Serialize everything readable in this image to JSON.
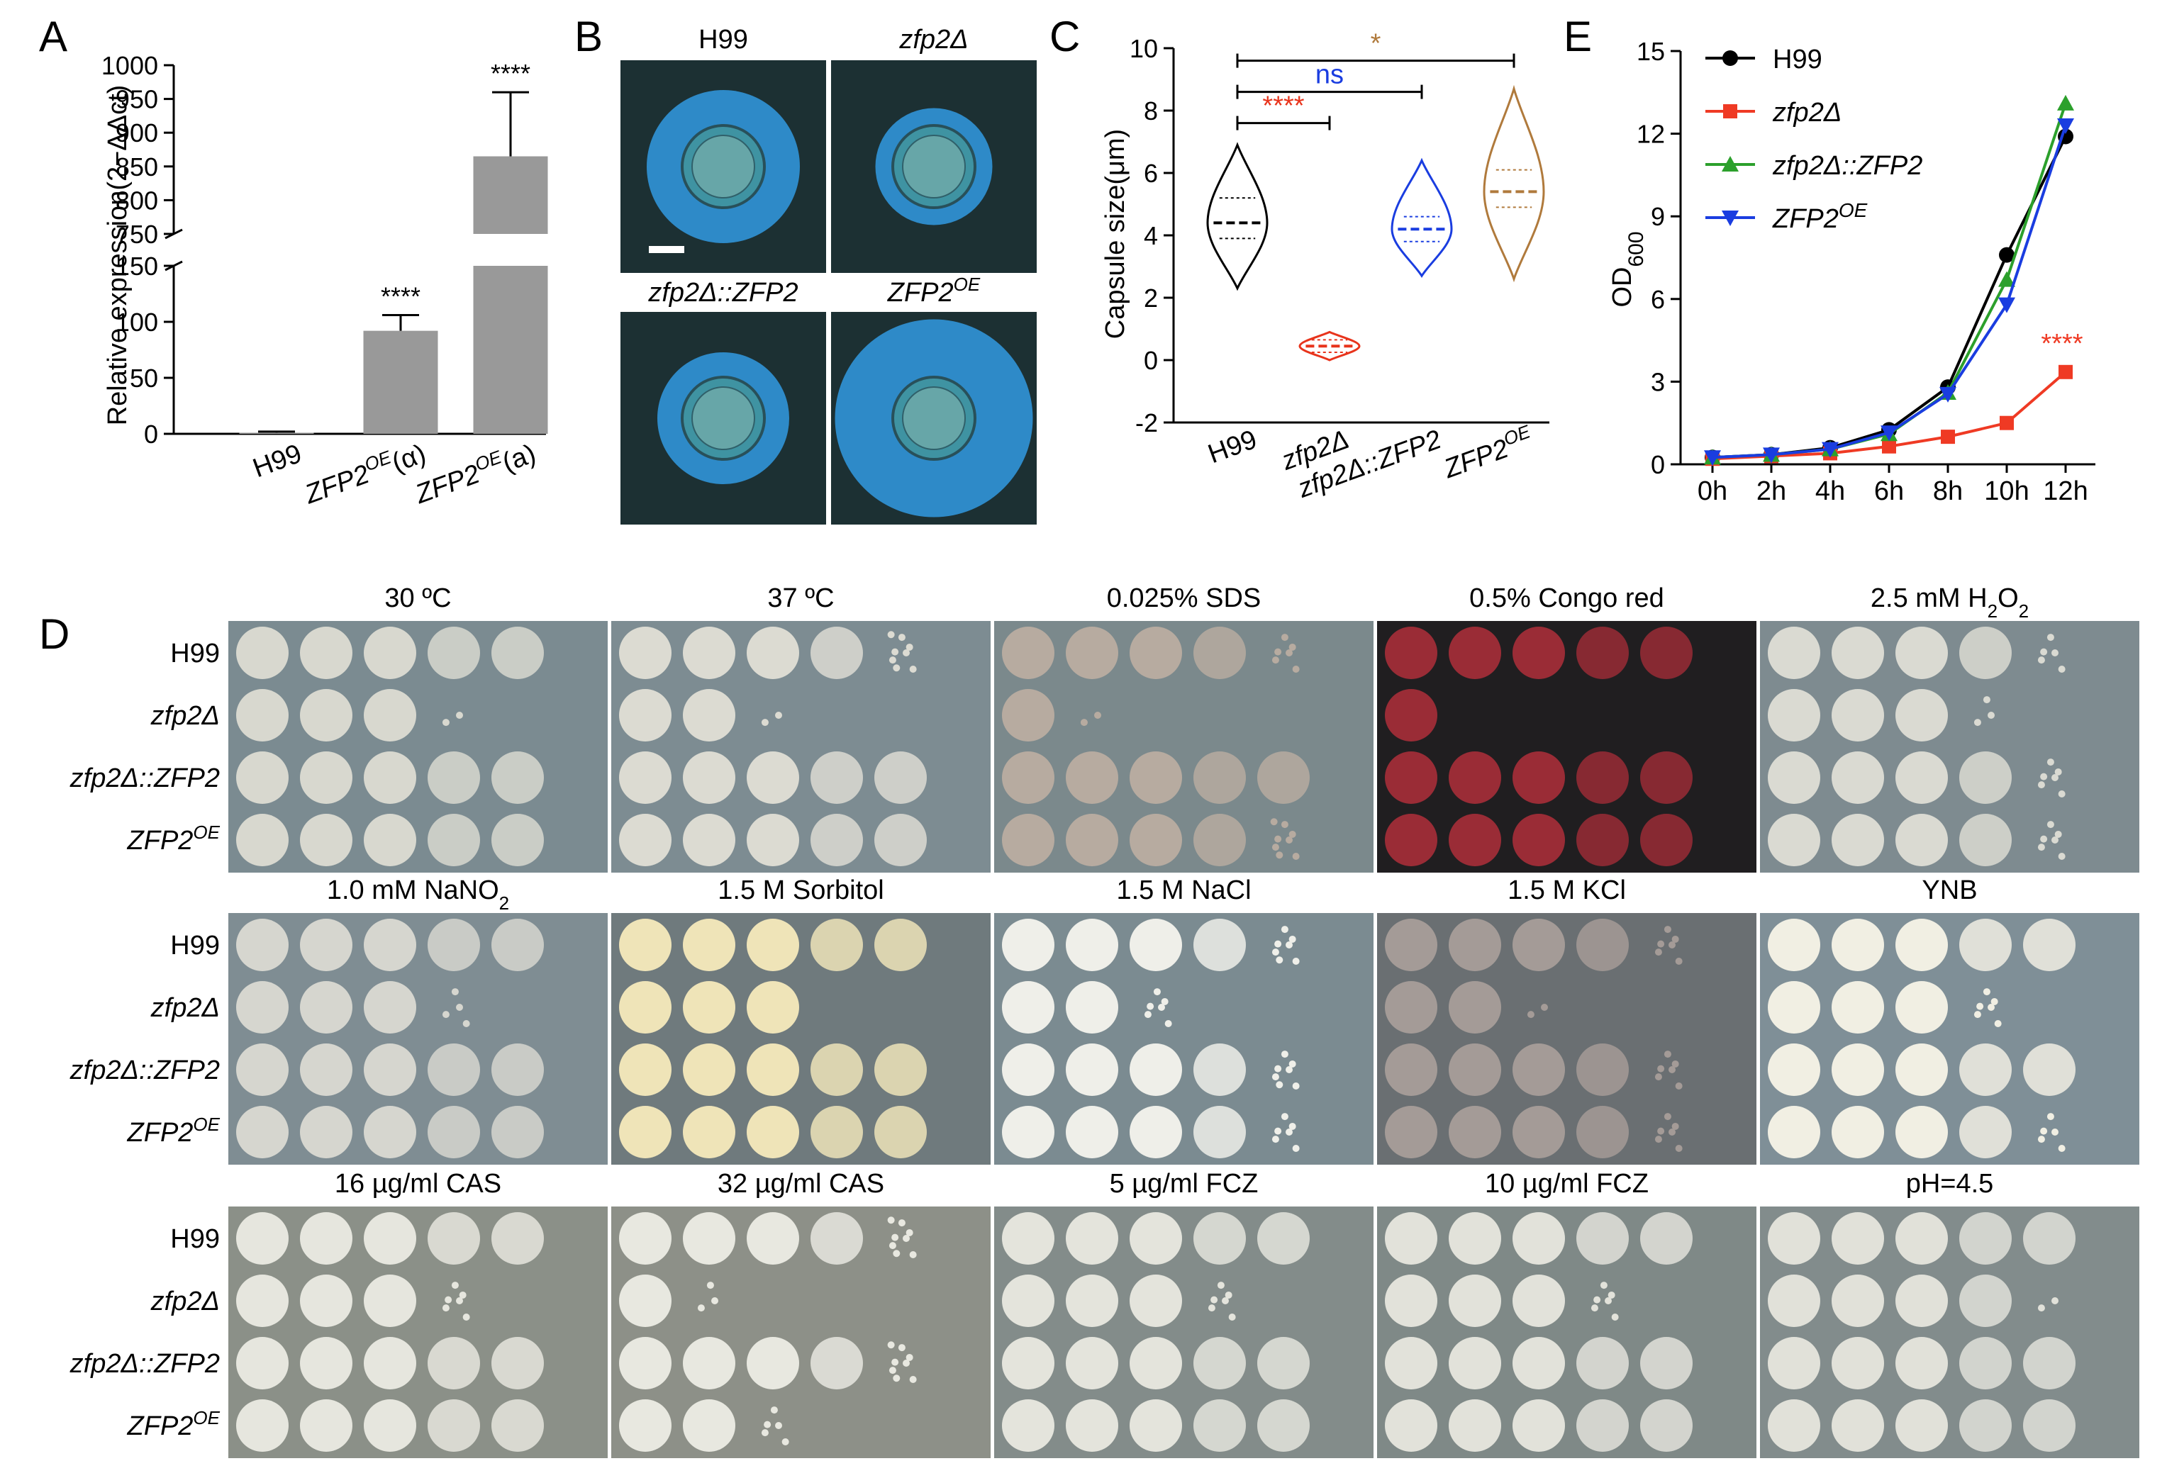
{
  "panel_letters": {
    "a": "A",
    "b": "B",
    "c": "C",
    "d": "D",
    "e": "E"
  },
  "chart_data": [
    {
      "panel": "A",
      "type": "bar",
      "ylabel": "Relative expression(2−ΔΔct)",
      "axis_break": true,
      "lower_range": [
        0,
        150
      ],
      "upper_range": [
        750,
        1000
      ],
      "lower_ticks": [
        "0",
        "50",
        "100",
        "150"
      ],
      "upper_ticks": [
        "750",
        "800",
        "850",
        "900",
        "950",
        "1000"
      ],
      "categories": [
        {
          "base": "H99",
          "sup": "",
          "suffix": ""
        },
        {
          "base": "ZFP2",
          "sup": "OE",
          "suffix": "(α)"
        },
        {
          "base": "ZFP2",
          "sup": "OE",
          "suffix": "(a)"
        }
      ],
      "values": [
        1,
        92,
        865
      ],
      "errors": [
        1,
        14,
        95
      ],
      "significance": [
        "",
        "****",
        "****"
      ],
      "bar_color": "#999999"
    },
    {
      "panel": "C",
      "type": "violin",
      "ylabel": "Capsule size(μm)",
      "ylim": [
        -2,
        10
      ],
      "ticks": [
        "-2",
        "0",
        "2",
        "4",
        "6",
        "8",
        "10"
      ],
      "categories": [
        {
          "base": "H99",
          "sup": ""
        },
        {
          "base": "zfp2Δ",
          "sup": ""
        },
        {
          "base": "zfp2Δ::ZFP2",
          "sup": ""
        },
        {
          "base": "ZFP2",
          "sup": "OE"
        }
      ],
      "series": [
        {
          "median": 4.4,
          "q1": 3.9,
          "q3": 5.2,
          "min": 2.3,
          "max": 6.9,
          "color": "#000000"
        },
        {
          "median": 0.45,
          "q1": 0.25,
          "q3": 0.65,
          "min": 0.0,
          "max": 0.9,
          "color": "#e8341c"
        },
        {
          "median": 4.2,
          "q1": 3.8,
          "q3": 4.6,
          "min": 2.7,
          "max": 6.4,
          "color": "#1a3de0"
        },
        {
          "median": 5.4,
          "q1": 4.9,
          "q3": 6.1,
          "min": 2.6,
          "max": 8.7,
          "color": "#b07a3c"
        }
      ],
      "comparisons": [
        {
          "from": 0,
          "to": 1,
          "level": 7.6,
          "label": "****",
          "color": "#e8341c"
        },
        {
          "from": 0,
          "to": 2,
          "level": 8.6,
          "label": "ns",
          "color": "#1a3de0"
        },
        {
          "from": 0,
          "to": 3,
          "level": 9.6,
          "label": "*",
          "color": "#b07a3c"
        }
      ]
    },
    {
      "panel": "E",
      "type": "line",
      "ylabel_main": "OD",
      "ylabel_sub": "600",
      "ylim": [
        0,
        15
      ],
      "yticks": [
        "0",
        "3",
        "6",
        "9",
        "12",
        "15"
      ],
      "x": [
        "0h",
        "2h",
        "4h",
        "6h",
        "8h",
        "10h",
        "12h"
      ],
      "series": [
        {
          "name": "H99",
          "italic": false,
          "sup": "",
          "values": [
            0.25,
            0.35,
            0.6,
            1.25,
            2.8,
            7.6,
            11.9
          ],
          "color": "#000000",
          "marker": "circle"
        },
        {
          "name": "zfp2Δ",
          "italic": true,
          "sup": "",
          "values": [
            0.2,
            0.3,
            0.4,
            0.65,
            1.0,
            1.5,
            3.35
          ],
          "color": "#ef3a24",
          "marker": "square"
        },
        {
          "name": "zfp2Δ::ZFP2",
          "italic": true,
          "sup": "",
          "values": [
            0.25,
            0.35,
            0.55,
            1.1,
            2.6,
            6.7,
            13.1
          ],
          "color": "#2ca02c",
          "marker": "triangle-up"
        },
        {
          "name": "ZFP2",
          "italic": true,
          "sup": "OE",
          "values": [
            0.25,
            0.35,
            0.55,
            1.15,
            2.55,
            5.8,
            12.3
          ],
          "color": "#1a3de0",
          "marker": "triangle-down"
        }
      ],
      "annotation": {
        "label": "****",
        "color": "#ef3a24"
      }
    }
  ],
  "panel_b": {
    "labels": [
      {
        "base": "H99",
        "sup": "",
        "italic": false
      },
      {
        "base": "zfp2Δ",
        "sup": "",
        "italic": true
      },
      {
        "base": "zfp2Δ::ZFP2",
        "sup": "",
        "italic": true
      },
      {
        "base": "ZFP2",
        "sup": "OE",
        "italic": true
      }
    ],
    "capsule_diameters": [
      0.72,
      0.55,
      0.62,
      0.93
    ]
  },
  "panel_d": {
    "strains": [
      {
        "base": "H99",
        "sup": "",
        "italic": false
      },
      {
        "base": "zfp2Δ",
        "sup": "",
        "italic": true
      },
      {
        "base": "zfp2Δ::ZFP2",
        "sup": "",
        "italic": true
      },
      {
        "base": "ZFP2",
        "sup": "OE",
        "italic": true
      }
    ],
    "conditions": [
      {
        "label": "30 ºC",
        "sub": "",
        "bg": "#7b8b91",
        "spot": "#d8d8cf",
        "growth": [
          5,
          3.2,
          5,
          5
        ]
      },
      {
        "label": "37 ºC",
        "sub": "",
        "bg": "#7d8c92",
        "spot": "#dcdbd2",
        "growth": [
          4.8,
          2.1,
          5,
          5
        ]
      },
      {
        "label": "0.025% SDS",
        "sub": "",
        "bg": "#7b898c",
        "spot": "#b7aba0",
        "growth": [
          4.6,
          1.2,
          5,
          4.8
        ]
      },
      {
        "label": "0.5% Congo red",
        "sub": "",
        "bg": "#201e20",
        "spot": "#9a2c36",
        "growth": [
          5,
          1.0,
          5,
          5
        ]
      },
      {
        "label": "2.5 mM H",
        "sub": "2",
        "tail": "O",
        "tail_sub": "2",
        "bg": "#7e8b90",
        "spot": "#dadad2",
        "growth": [
          4.5,
          3.3,
          4.6,
          4.6
        ]
      },
      {
        "label": "1.0 mM NaNO",
        "sub": "2",
        "bg": "#7f8d93",
        "spot": "#d6d6cf",
        "growth": [
          5,
          3.4,
          5,
          5
        ]
      },
      {
        "label": "1.5 M Sorbitol",
        "sub": "",
        "bg": "#6f7a7d",
        "spot": "#efe4b8",
        "growth": [
          5,
          3.0,
          5,
          5
        ]
      },
      {
        "label": "1.5 M NaCl",
        "sub": "",
        "bg": "#7b8b91",
        "spot": "#efefe9",
        "growth": [
          4.7,
          2.6,
          4.7,
          4.6
        ]
      },
      {
        "label": "1.5 M KCl",
        "sub": "",
        "bg": "#6a6f72",
        "spot": "#a49b97",
        "growth": [
          4.6,
          2.2,
          4.6,
          4.6
        ]
      },
      {
        "label": "YNB",
        "sub": "",
        "bg": "#7f8f97",
        "spot": "#f1efe3",
        "growth": [
          5,
          3.6,
          5,
          4.5
        ]
      },
      {
        "label": "16 µg/ml CAS",
        "sub": "",
        "bg": "#8b9088",
        "spot": "#e6e6de",
        "growth": [
          5,
          3.6,
          5,
          5
        ]
      },
      {
        "label": "32 µg/ml CAS",
        "sub": "",
        "bg": "#8d9088",
        "spot": "#e8e8e0",
        "growth": [
          4.8,
          1.3,
          4.8,
          2.5
        ]
      },
      {
        "label": "5 µg/ml FCZ",
        "sub": "",
        "bg": "#838c8a",
        "spot": "#e4e4dc",
        "growth": [
          5,
          3.6,
          5,
          5
        ]
      },
      {
        "label": "10 µg/ml FCZ",
        "sub": "",
        "bg": "#7f8987",
        "spot": "#e2e2da",
        "growth": [
          5,
          3.6,
          5,
          5
        ]
      },
      {
        "label": "pH=4.5",
        "sub": "",
        "bg": "#828c8c",
        "spot": "#e1e1d9",
        "growth": [
          5,
          4.2,
          5,
          5
        ]
      }
    ]
  }
}
